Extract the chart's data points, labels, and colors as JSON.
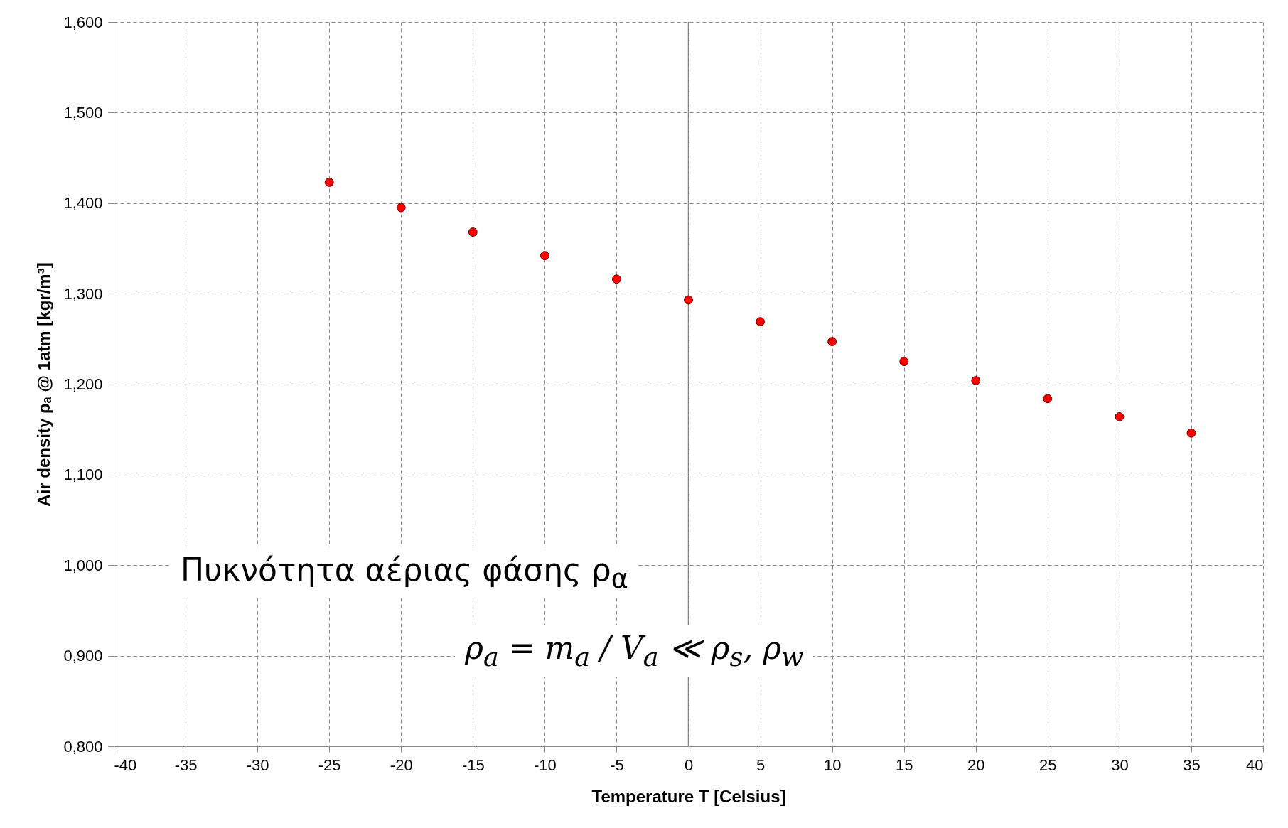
{
  "chart_data": {
    "type": "scatter",
    "xlabel": "Temperature T [Celsius]",
    "ylabel": "Air density ρₐ @ 1atm [kgr/m³]",
    "x": [
      -25,
      -20,
      -15,
      -10,
      -5,
      0,
      5,
      10,
      15,
      20,
      25,
      30,
      35
    ],
    "series": [
      {
        "color": "#ff0000",
        "values": [
          1.423,
          1.395,
          1.368,
          1.342,
          1.316,
          1.293,
          1.269,
          1.247,
          1.225,
          1.204,
          1.184,
          1.164,
          1.146
        ]
      }
    ],
    "xlim": [
      -40,
      40
    ],
    "xticks": [
      -40,
      -35,
      -30,
      -25,
      -20,
      -15,
      -10,
      -5,
      0,
      5,
      10,
      15,
      20,
      25,
      30,
      35,
      40
    ],
    "ylim": [
      0.8,
      1.6
    ],
    "yticks": [
      {
        "value": 0.8,
        "label": "0,800"
      },
      {
        "value": 0.9,
        "label": "0,900"
      },
      {
        "value": 1.0,
        "label": "1,000"
      },
      {
        "value": 1.1,
        "label": "1,100"
      },
      {
        "value": 1.2,
        "label": "1,200"
      },
      {
        "value": 1.3,
        "label": "1,300"
      },
      {
        "value": 1.4,
        "label": "1,400"
      },
      {
        "value": 1.5,
        "label": "1,500"
      },
      {
        "value": 1.6,
        "label": "1,600"
      }
    ],
    "ref_lines": [
      {
        "axis": "x",
        "value": 0,
        "color": "#808080"
      }
    ],
    "annotations": [
      "Πυκνότητα αέριας φάσης ρ$_{α}$",
      "ρ$_{a}$ = m$_{a}$ / V$_{a}$ ≪ ρ$_{s}$, ρ$_{w}$"
    ],
    "grid": true,
    "marker": "circle",
    "legend": false
  }
}
